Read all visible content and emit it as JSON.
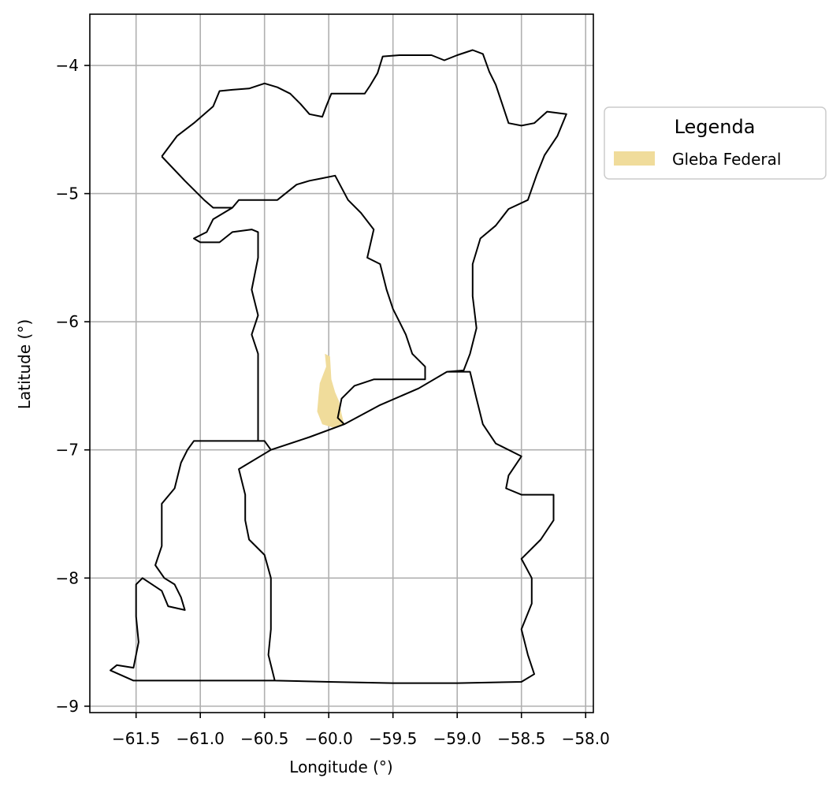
{
  "chart_data": {
    "type": "map",
    "xlabel": "Longitude (°)",
    "ylabel": "Latitude (°)",
    "xlim": [
      -61.86,
      -57.94
    ],
    "ylim": [
      -9.05,
      -3.6
    ],
    "grid": true,
    "x_ticks": [
      -61.5,
      -61.0,
      -60.5,
      -60.0,
      -59.5,
      -59.0,
      -58.5,
      -58.0
    ],
    "x_tick_labels": [
      "−61.5",
      "−61.0",
      "−60.5",
      "−60.0",
      "−59.5",
      "−59.0",
      "−58.5",
      "−58.0"
    ],
    "y_ticks": [
      -4,
      -5,
      -6,
      -7,
      -8,
      -9
    ],
    "y_tick_labels": [
      "−4",
      "−5",
      "−6",
      "−7",
      "−8",
      "−9"
    ],
    "legend": {
      "title": "Legenda",
      "placement": "outside-right-top",
      "entries": [
        {
          "label": "Gleba Federal",
          "color": "#f0dc9b"
        }
      ]
    },
    "colors": {
      "boundary": "#000000",
      "gleba_fill": "#f0dc9b",
      "grid": "#b0b0b0"
    },
    "layers": [
      {
        "role": "municipal-boundaries",
        "polygons": [
          [
            [
              -61.3,
              -4.71
            ],
            [
              -61.18,
              -4.55
            ],
            [
              -61.05,
              -4.45
            ],
            [
              -60.9,
              -4.32
            ],
            [
              -60.85,
              -4.2
            ],
            [
              -60.75,
              -4.19
            ],
            [
              -60.62,
              -4.18
            ],
            [
              -60.5,
              -4.14
            ],
            [
              -60.4,
              -4.17
            ],
            [
              -60.3,
              -4.22
            ],
            [
              -60.22,
              -4.3
            ],
            [
              -60.15,
              -4.38
            ],
            [
              -60.05,
              -4.4
            ],
            [
              -60.02,
              -4.32
            ],
            [
              -59.98,
              -4.22
            ],
            [
              -59.9,
              -4.22
            ],
            [
              -59.72,
              -4.22
            ],
            [
              -59.68,
              -4.16
            ],
            [
              -59.62,
              -4.06
            ],
            [
              -59.58,
              -3.93
            ],
            [
              -59.45,
              -3.92
            ],
            [
              -59.3,
              -3.92
            ],
            [
              -59.2,
              -3.92
            ],
            [
              -59.1,
              -3.96
            ],
            [
              -59.0,
              -3.92
            ],
            [
              -58.88,
              -3.88
            ],
            [
              -58.8,
              -3.91
            ],
            [
              -58.75,
              -4.05
            ],
            [
              -58.7,
              -4.15
            ],
            [
              -58.65,
              -4.3
            ],
            [
              -58.6,
              -4.45
            ],
            [
              -58.5,
              -4.47
            ],
            [
              -58.4,
              -4.45
            ],
            [
              -58.3,
              -4.36
            ],
            [
              -58.15,
              -4.38
            ],
            [
              -58.22,
              -4.55
            ],
            [
              -58.32,
              -4.7
            ],
            [
              -58.38,
              -4.85
            ],
            [
              -58.45,
              -5.05
            ],
            [
              -58.6,
              -5.12
            ],
            [
              -58.7,
              -5.25
            ],
            [
              -58.82,
              -5.35
            ],
            [
              -58.88,
              -5.55
            ],
            [
              -58.88,
              -5.8
            ],
            [
              -58.85,
              -6.05
            ],
            [
              -58.9,
              -6.25
            ],
            [
              -58.95,
              -6.38
            ],
            [
              -59.08,
              -6.39
            ],
            [
              -59.3,
              -6.52
            ],
            [
              -59.6,
              -6.65
            ],
            [
              -59.88,
              -6.8
            ],
            [
              -60.15,
              -6.9
            ],
            [
              -60.45,
              -7.0
            ],
            [
              -60.7,
              -7.15
            ],
            [
              -60.65,
              -7.35
            ],
            [
              -60.65,
              -7.55
            ],
            [
              -60.62,
              -7.7
            ],
            [
              -60.5,
              -7.82
            ],
            [
              -60.45,
              -8.0
            ],
            [
              -60.45,
              -8.2
            ],
            [
              -60.45,
              -8.4
            ],
            [
              -60.47,
              -8.6
            ],
            [
              -60.42,
              -8.8
            ],
            [
              -60.0,
              -8.81
            ],
            [
              -59.5,
              -8.82
            ],
            [
              -59.0,
              -8.82
            ],
            [
              -58.5,
              -8.81
            ],
            [
              -58.4,
              -8.75
            ],
            [
              -58.45,
              -8.6
            ],
            [
              -58.5,
              -8.4
            ],
            [
              -58.42,
              -8.2
            ],
            [
              -58.42,
              -8.0
            ],
            [
              -58.5,
              -7.85
            ],
            [
              -58.35,
              -7.7
            ],
            [
              -58.25,
              -7.55
            ],
            [
              -58.25,
              -7.35
            ],
            [
              -58.5,
              -7.35
            ],
            [
              -58.62,
              -7.3
            ],
            [
              -58.6,
              -7.2
            ],
            [
              -58.5,
              -7.05
            ],
            [
              -58.7,
              -6.95
            ],
            [
              -58.8,
              -6.8
            ],
            [
              -58.85,
              -6.6
            ],
            [
              -58.9,
              -6.39
            ],
            [
              -59.08,
              -6.39
            ],
            [
              -59.3,
              -6.52
            ],
            [
              -59.6,
              -6.65
            ],
            [
              -59.88,
              -6.8
            ],
            [
              -60.15,
              -6.9
            ],
            [
              -60.45,
              -7.0
            ],
            [
              -60.5,
              -6.93
            ],
            [
              -60.9,
              -6.93
            ],
            [
              -61.05,
              -6.93
            ],
            [
              -61.1,
              -7.0
            ],
            [
              -61.15,
              -7.1
            ],
            [
              -61.2,
              -7.3
            ],
            [
              -61.3,
              -7.42
            ],
            [
              -61.3,
              -7.55
            ],
            [
              -61.3,
              -7.75
            ],
            [
              -61.35,
              -7.9
            ],
            [
              -61.28,
              -8.0
            ],
            [
              -61.2,
              -8.05
            ],
            [
              -61.15,
              -8.15
            ],
            [
              -61.12,
              -8.25
            ],
            [
              -61.25,
              -8.22
            ],
            [
              -61.3,
              -8.1
            ],
            [
              -61.45,
              -8.0
            ],
            [
              -61.5,
              -8.05
            ],
            [
              -61.5,
              -8.3
            ],
            [
              -61.48,
              -8.5
            ],
            [
              -61.52,
              -8.7
            ],
            [
              -61.65,
              -8.68
            ],
            [
              -61.7,
              -8.72
            ],
            [
              -61.52,
              -8.8
            ],
            [
              -61.0,
              -8.8
            ],
            [
              -60.42,
              -8.8
            ]
          ],
          [
            [
              -61.3,
              -4.71
            ],
            [
              -61.12,
              -4.9
            ],
            [
              -60.97,
              -5.05
            ],
            [
              -60.9,
              -5.11
            ],
            [
              -60.75,
              -5.11
            ],
            [
              -60.7,
              -5.05
            ],
            [
              -60.4,
              -5.05
            ],
            [
              -60.25,
              -4.93
            ],
            [
              -60.15,
              -4.9
            ],
            [
              -60.05,
              -4.88
            ],
            [
              -59.95,
              -4.86
            ],
            [
              -59.85,
              -5.05
            ],
            [
              -59.75,
              -5.15
            ],
            [
              -59.65,
              -5.28
            ],
            [
              -59.7,
              -5.5
            ],
            [
              -59.6,
              -5.55
            ],
            [
              -59.55,
              -5.75
            ],
            [
              -59.5,
              -5.9
            ],
            [
              -59.45,
              -6.0
            ],
            [
              -59.4,
              -6.1
            ],
            [
              -59.35,
              -6.25
            ],
            [
              -59.25,
              -6.35
            ],
            [
              -59.25,
              -6.45
            ],
            [
              -59.55,
              -6.45
            ],
            [
              -59.65,
              -6.45
            ],
            [
              -59.8,
              -6.5
            ],
            [
              -59.9,
              -6.6
            ],
            [
              -59.93,
              -6.75
            ],
            [
              -59.88,
              -6.8
            ]
          ],
          [
            [
              -60.75,
              -5.11
            ],
            [
              -60.9,
              -5.2
            ],
            [
              -60.95,
              -5.3
            ],
            [
              -61.05,
              -5.35
            ],
            [
              -61.0,
              -5.38
            ],
            [
              -60.85,
              -5.38
            ],
            [
              -60.75,
              -5.3
            ],
            [
              -60.6,
              -5.28
            ],
            [
              -60.55,
              -5.3
            ],
            [
              -60.55,
              -5.5
            ],
            [
              -60.6,
              -5.75
            ],
            [
              -60.55,
              -5.95
            ],
            [
              -60.6,
              -6.1
            ],
            [
              -60.55,
              -6.25
            ],
            [
              -60.55,
              -6.45
            ],
            [
              -60.55,
              -6.6
            ],
            [
              -60.55,
              -6.93
            ]
          ]
        ]
      },
      {
        "role": "gleba-federal",
        "label": "Gleba Federal",
        "polygons": [
          [
            [
              -60.03,
              -6.25
            ],
            [
              -59.99,
              -6.27
            ],
            [
              -59.98,
              -6.45
            ],
            [
              -59.95,
              -6.55
            ],
            [
              -59.92,
              -6.62
            ],
            [
              -59.9,
              -6.72
            ],
            [
              -59.88,
              -6.8
            ],
            [
              -59.95,
              -6.83
            ],
            [
              -60.05,
              -6.8
            ],
            [
              -60.09,
              -6.7
            ],
            [
              -60.08,
              -6.58
            ],
            [
              -60.07,
              -6.48
            ],
            [
              -60.02,
              -6.35
            ]
          ]
        ]
      }
    ]
  }
}
